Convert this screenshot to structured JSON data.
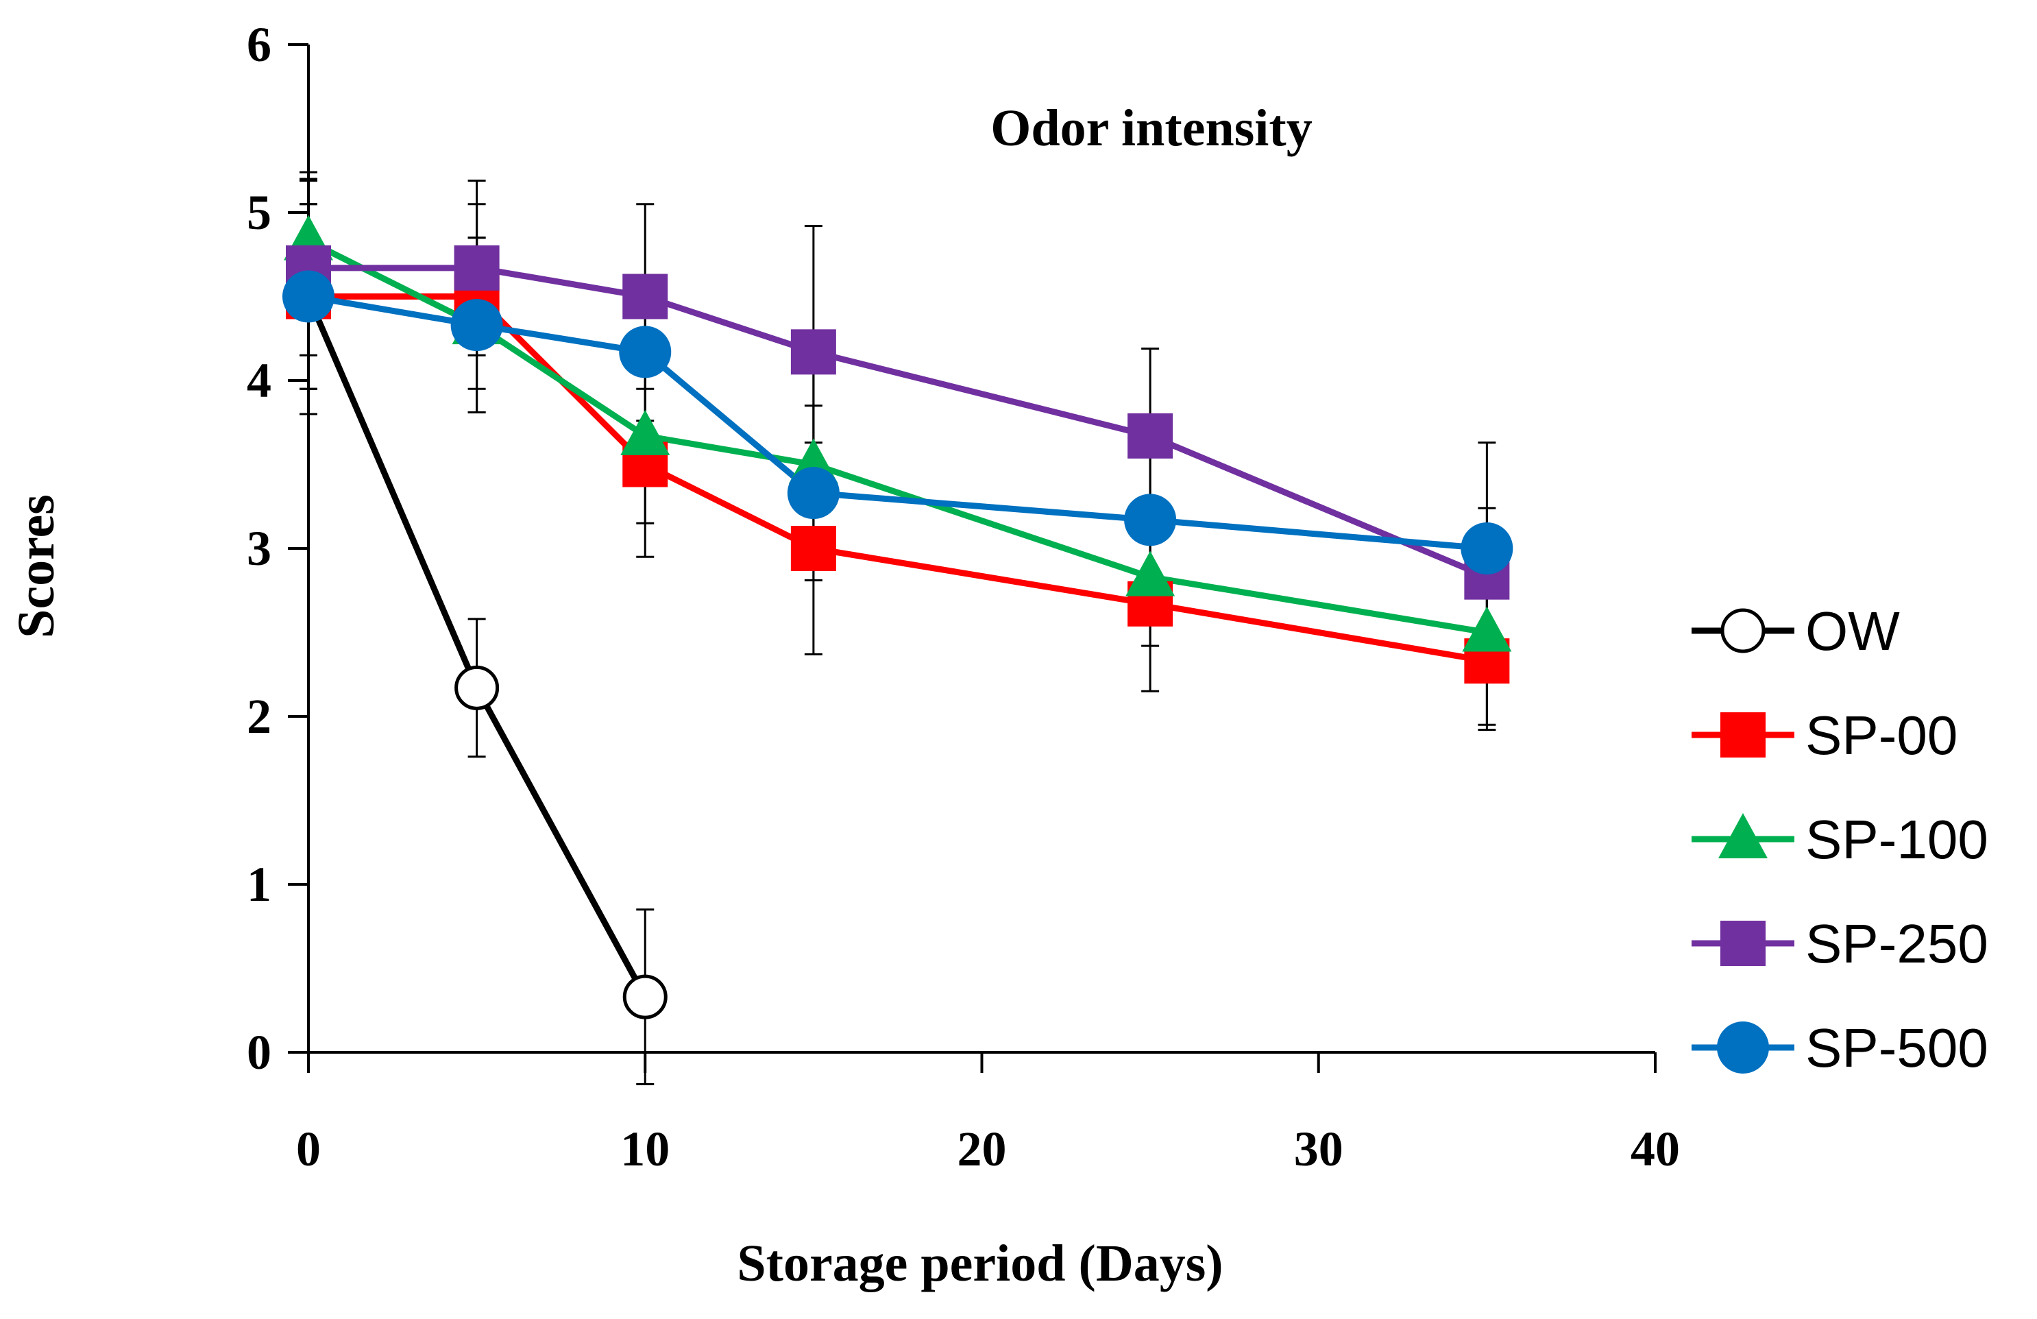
{
  "chart_data": {
    "type": "line",
    "title": "Odor intensity",
    "xlabel": "Storage period (Days)",
    "ylabel": "Scores",
    "xlim": [
      0,
      40
    ],
    "ylim": [
      0,
      6
    ],
    "xticks": [
      0,
      10,
      20,
      30,
      40
    ],
    "yticks": [
      0,
      1,
      2,
      3,
      4,
      5,
      6
    ],
    "grid": false,
    "legend_position": "right",
    "series": [
      {
        "name": "OW",
        "color": "#000000",
        "marker": "open-circle",
        "x": [
          0,
          5,
          10
        ],
        "y": [
          4.5,
          2.17,
          0.33
        ],
        "err": [
          0.7,
          0.41,
          0.52
        ]
      },
      {
        "name": "SP-00",
        "color": "#ff0000",
        "marker": "square",
        "x": [
          0,
          5,
          10,
          15,
          25,
          35
        ],
        "y": [
          4.5,
          4.5,
          3.5,
          3.0,
          2.67,
          2.33
        ],
        "err": [
          0.55,
          0.55,
          0.55,
          0.63,
          0.52,
          0.41
        ]
      },
      {
        "name": "SP-100",
        "color": "#00b050",
        "marker": "triangle",
        "x": [
          0,
          5,
          10,
          15,
          25,
          35
        ],
        "y": [
          4.83,
          4.33,
          3.67,
          3.5,
          2.83,
          2.5
        ],
        "err": [
          0.41,
          0.52,
          0.52,
          0.55,
          0.41,
          0.55
        ]
      },
      {
        "name": "SP-250",
        "color": "#7030a0",
        "marker": "square",
        "x": [
          0,
          5,
          10,
          15,
          25,
          35
        ],
        "y": [
          4.67,
          4.67,
          4.5,
          4.17,
          3.67,
          2.83
        ],
        "err": [
          0.52,
          0.52,
          0.55,
          0.75,
          0.52,
          0.41
        ]
      },
      {
        "name": "SP-500",
        "color": "#0070c0",
        "marker": "circle",
        "x": [
          0,
          5,
          10,
          15,
          25,
          35
        ],
        "y": [
          4.5,
          4.33,
          4.17,
          3.33,
          3.17,
          3.0
        ],
        "err": [
          0.55,
          0.52,
          0.41,
          0.52,
          0.41,
          0.63
        ]
      }
    ]
  }
}
